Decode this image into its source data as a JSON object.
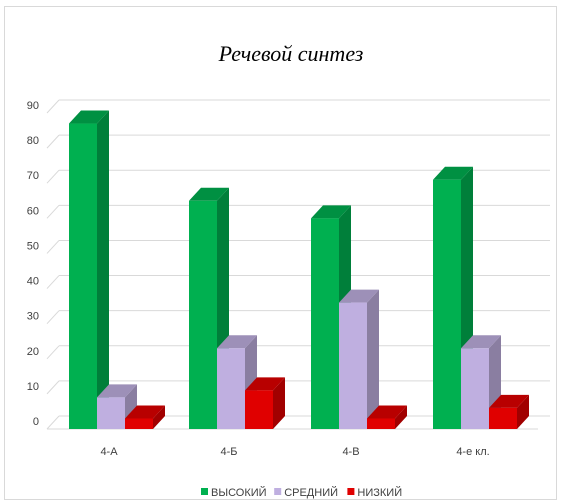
{
  "chart_data": {
    "type": "bar",
    "title": "Речевой синтез",
    "categories": [
      "4-А",
      "4-Б",
      "4-В",
      "4-е кл."
    ],
    "series": [
      {
        "name": "ВЫСОКИЙ",
        "values": [
          87,
          65,
          60,
          71
        ],
        "color": "#00b050"
      },
      {
        "name": "СРЕДНИЙ",
        "values": [
          9,
          23,
          36,
          23
        ],
        "color": "#bfafe0"
      },
      {
        "name": "НИЗКИЙ",
        "values": [
          3,
          11,
          3,
          6
        ],
        "color": "#e00000"
      }
    ],
    "ylim": [
      0,
      90
    ],
    "yticks": [
      0,
      10,
      20,
      30,
      40,
      50,
      60,
      70,
      80,
      90
    ],
    "grid": true,
    "legend_position": "bottom"
  }
}
